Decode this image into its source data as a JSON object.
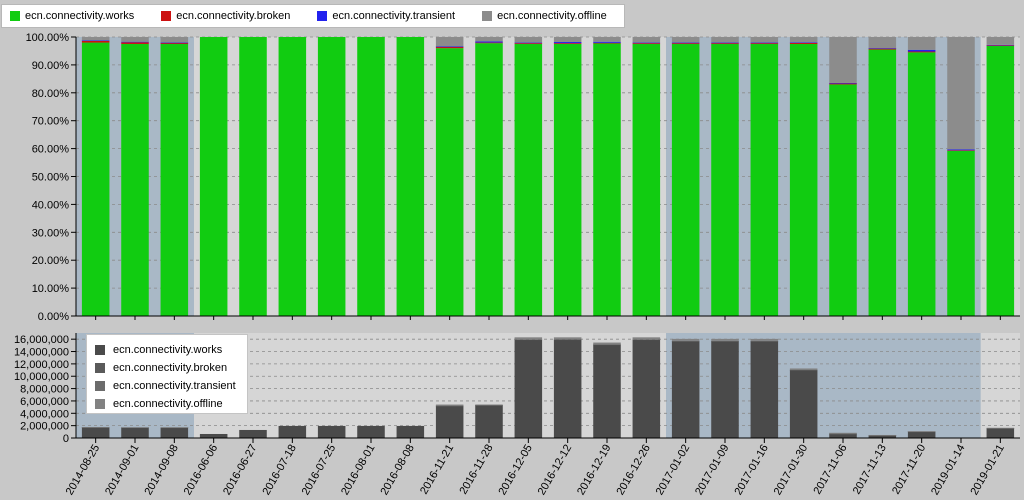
{
  "legend_top": [
    {
      "label": "ecn.connectivity.works",
      "color": "#11cc11"
    },
    {
      "label": "ecn.connectivity.broken",
      "color": "#cc1111"
    },
    {
      "label": "ecn.connectivity.transient",
      "color": "#2222ee"
    },
    {
      "label": "ecn.connectivity.offline",
      "color": "#8c8c8c"
    }
  ],
  "legend_bottom": [
    {
      "label": "ecn.connectivity.works",
      "color": "#4a4a4a"
    },
    {
      "label": "ecn.connectivity.broken",
      "color": "#5a5a5a"
    },
    {
      "label": "ecn.connectivity.transient",
      "color": "#6c6c6c"
    },
    {
      "label": "ecn.connectivity.offline",
      "color": "#828282"
    }
  ],
  "chart_data": [
    {
      "type": "bar",
      "stacked": true,
      "title": "",
      "xlabel": "",
      "ylabel": "",
      "ylim": [
        0,
        100
      ],
      "ytick_labels": [
        "0.00%",
        "10.00%",
        "20.00%",
        "30.00%",
        "40.00%",
        "50.00%",
        "60.00%",
        "70.00%",
        "80.00%",
        "90.00%",
        "100.00%"
      ],
      "categories": [
        "2014-08-25",
        "2014-09-01",
        "2014-09-08",
        "2016-06-06",
        "2016-06-27",
        "2016-07-18",
        "2016-07-25",
        "2016-08-01",
        "2016-08-08",
        "2016-11-21",
        "2016-11-28",
        "2016-12-05",
        "2016-12-12",
        "2016-12-19",
        "2016-12-26",
        "2017-01-02",
        "2017-01-09",
        "2017-01-16",
        "2017-01-30",
        "2017-11-06",
        "2017-11-13",
        "2017-11-20",
        "2019-01-14",
        "2019-01-21"
      ],
      "highlight_ranges": [
        [
          0,
          2
        ],
        [
          15,
          22
        ]
      ],
      "series": [
        {
          "name": "ecn.connectivity.works",
          "color": "#11cc11",
          "values": [
            98.0,
            97.5,
            97.5,
            100,
            100,
            100,
            100,
            100,
            100,
            96.0,
            97.8,
            97.5,
            97.5,
            97.7,
            97.5,
            97.5,
            97.5,
            97.5,
            97.5,
            83.0,
            95.5,
            94.5,
            59.2,
            96.8
          ]
        },
        {
          "name": "ecn.connectivity.broken",
          "color": "#cc1111",
          "values": [
            0.6,
            0.6,
            0.4,
            0,
            0,
            0,
            0,
            0,
            0,
            0.5,
            0.2,
            0.3,
            0.3,
            0.2,
            0.3,
            0.3,
            0.3,
            0.3,
            0.4,
            0.4,
            0.4,
            0.3,
            0.2,
            0.2
          ]
        },
        {
          "name": "ecn.connectivity.transient",
          "color": "#2222ee",
          "values": [
            0.2,
            0.2,
            0.1,
            0,
            0,
            0,
            0,
            0,
            0,
            0.1,
            0.4,
            0.2,
            0.4,
            0.4,
            0.2,
            0.2,
            0.2,
            0.2,
            0.2,
            0.1,
            0.1,
            0.6,
            0.3,
            0.2
          ]
        },
        {
          "name": "ecn.connectivity.offline",
          "color": "#8c8c8c",
          "values": [
            1.2,
            1.7,
            2.0,
            0,
            0,
            0,
            0,
            0,
            0,
            3.4,
            1.6,
            2.0,
            1.8,
            1.7,
            2.0,
            2.0,
            2.0,
            2.0,
            1.9,
            16.5,
            4.0,
            4.6,
            40.3,
            2.8
          ]
        }
      ]
    },
    {
      "type": "bar",
      "stacked": true,
      "title": "",
      "xlabel": "",
      "ylabel": "",
      "ylim": [
        0,
        17000000
      ],
      "ytick_labels": [
        "0",
        "2,000,000",
        "4,000,000",
        "6,000,000",
        "8,000,000",
        "10,000,000",
        "12,000,000",
        "14,000,000",
        "16,000,000"
      ],
      "categories": [
        "2014-08-25",
        "2014-09-01",
        "2014-09-08",
        "2016-06-06",
        "2016-06-27",
        "2016-07-18",
        "2016-07-25",
        "2016-08-01",
        "2016-08-08",
        "2016-11-21",
        "2016-11-28",
        "2016-12-05",
        "2016-12-12",
        "2016-12-19",
        "2016-12-26",
        "2017-01-02",
        "2017-01-09",
        "2017-01-16",
        "2017-01-30",
        "2017-11-06",
        "2017-11-13",
        "2017-11-20",
        "2019-01-14",
        "2019-01-21"
      ],
      "highlight_ranges": [
        [
          0,
          2
        ],
        [
          15,
          22
        ]
      ],
      "series": [
        {
          "name": "ecn.connectivity.works",
          "color": "#4a4a4a",
          "values": [
            1750000,
            1700000,
            1700000,
            650000,
            1300000,
            1950000,
            1950000,
            1950000,
            1950000,
            5200000,
            5300000,
            15900000,
            15900000,
            15100000,
            15900000,
            15650000,
            15650000,
            15650000,
            11000000,
            700000,
            470000,
            1050000,
            0,
            1600000
          ]
        },
        {
          "name": "ecn.connectivity.broken",
          "color": "#5a5a5a",
          "values": [
            10000,
            10000,
            8000,
            0,
            0,
            0,
            0,
            0,
            0,
            30000,
            15000,
            50000,
            50000,
            35000,
            50000,
            50000,
            50000,
            50000,
            40000,
            3000,
            2000,
            3000,
            0,
            3000
          ]
        },
        {
          "name": "ecn.connectivity.transient",
          "color": "#6c6c6c",
          "values": [
            3000,
            3000,
            2000,
            0,
            0,
            0,
            0,
            0,
            0,
            5000,
            20000,
            30000,
            60000,
            60000,
            30000,
            30000,
            30000,
            30000,
            20000,
            1000,
            500,
            6000,
            0,
            3000
          ]
        },
        {
          "name": "ecn.connectivity.offline",
          "color": "#828282",
          "values": [
            20000,
            30000,
            35000,
            0,
            0,
            0,
            0,
            0,
            0,
            180000,
            90000,
            320000,
            290000,
            260000,
            320000,
            320000,
            320000,
            320000,
            200000,
            140000,
            20000,
            50000,
            0,
            50000
          ]
        }
      ]
    }
  ]
}
